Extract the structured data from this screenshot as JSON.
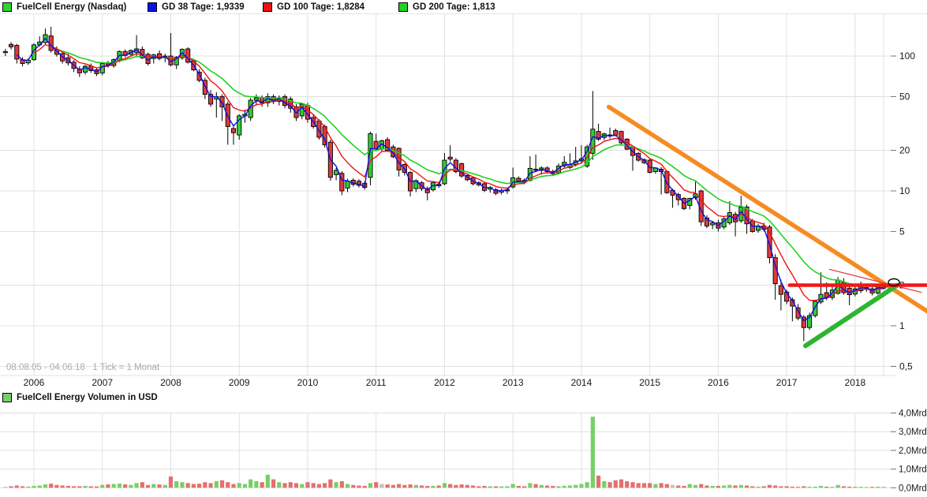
{
  "legend": {
    "price_series": "FuelCell Energy (Nasdaq)",
    "gd38": "GD 38 Tage: 1,9339",
    "gd100": "GD 100 Tage: 1,8284",
    "gd200": "GD 200 Tage: 1,813",
    "volume_series": "FuelCell Energy Volumen in USD"
  },
  "footer_note": "08.08.05 - 04.06.18   1 Tick = 1 Monat",
  "colors": {
    "candle_up": "#33cc33",
    "candle_down": "#e03a3a",
    "candle_border": "#000000",
    "ma38": "#0f0fe8",
    "ma100": "#ef1212",
    "ma200": "#22d122",
    "vol_up": "#77d066",
    "vol_down": "#e37070",
    "vol_neutral": "#c2c2c2",
    "trend_orange": "#f68b22",
    "trend_green": "#2eb530",
    "resistance_red": "#f21616",
    "minor_red": "#e03030",
    "grid": "#e0e0e0",
    "axis_text": "#1a1a1a",
    "muted_text": "#ababab",
    "legend_price_swatch": "#2ed42e",
    "legend_vol_swatch": "#77d066"
  },
  "chart_data": [
    {
      "type": "candlestick",
      "title": "FuelCell Energy (Nasdaq)",
      "period_start": "08.08.05",
      "period_end": "04.06.18",
      "tick_unit": "1 Tick = 1 Monat",
      "scale": "log",
      "start_month": "2005-08",
      "end_month": "2018-06",
      "y_ticks": [
        100,
        50,
        20,
        10,
        5,
        2,
        1,
        0.5
      ],
      "y_tick_labels": [
        "100",
        "50",
        "20",
        "10",
        "5",
        "2",
        "1",
        "0,5"
      ],
      "x_axis_years": [
        {
          "label": "2006",
          "month_index": 5
        },
        {
          "label": "2007",
          "month_index": 17
        },
        {
          "label": "2008",
          "month_index": 29
        },
        {
          "label": "2009",
          "month_index": 41
        },
        {
          "label": "2010",
          "month_index": 53
        },
        {
          "label": "2011",
          "month_index": 65
        },
        {
          "label": "2012",
          "month_index": 77
        },
        {
          "label": "2013",
          "month_index": 89
        },
        {
          "label": "2014",
          "month_index": 101
        },
        {
          "label": "2015",
          "month_index": 113
        },
        {
          "label": "2016",
          "month_index": 125
        },
        {
          "label": "2017",
          "month_index": 137
        },
        {
          "label": "2018",
          "month_index": 149
        }
      ],
      "moving_averages": [
        {
          "name": "GD 38 Tage",
          "value": 1.9339,
          "color": "#0f0fe8"
        },
        {
          "name": "GD 100 Tage",
          "value": 1.8284,
          "color": "#ef1212"
        },
        {
          "name": "GD 200 Tage",
          "value": 1.813,
          "color": "#22d122"
        }
      ],
      "candles_format": [
        "open",
        "high",
        "low",
        "close"
      ],
      "candles": [
        [
          106,
          113,
          100,
          108
        ],
        [
          122,
          127,
          112,
          117
        ],
        [
          120,
          123,
          88,
          95
        ],
        [
          94,
          98,
          84,
          88
        ],
        [
          89,
          96,
          86,
          93
        ],
        [
          94,
          124,
          92,
          121
        ],
        [
          121,
          140,
          118,
          127
        ],
        [
          126,
          160,
          122,
          144
        ],
        [
          141,
          165,
          106,
          110
        ],
        [
          112,
          118,
          99,
          103
        ],
        [
          104,
          108,
          88,
          92
        ],
        [
          97,
          104,
          85,
          89
        ],
        [
          90,
          93,
          76,
          81
        ],
        [
          80,
          84,
          70,
          75
        ],
        [
          76,
          86,
          73,
          84
        ],
        [
          84,
          88,
          75,
          78
        ],
        [
          79,
          82,
          71,
          74
        ],
        [
          75,
          90,
          72,
          88
        ],
        [
          88,
          92,
          82,
          86
        ],
        [
          85,
          96,
          82,
          94
        ],
        [
          92,
          110,
          90,
          108
        ],
        [
          108,
          112,
          98,
          101
        ],
        [
          103,
          112,
          99,
          110
        ],
        [
          106,
          143,
          100,
          113
        ],
        [
          112,
          118,
          95,
          97
        ],
        [
          103,
          106,
          85,
          88
        ],
        [
          96,
          104,
          88,
          102
        ],
        [
          104,
          110,
          93,
          96
        ],
        [
          97,
          104,
          90,
          100
        ],
        [
          100,
          148,
          84,
          86
        ],
        [
          86,
          100,
          80,
          98
        ],
        [
          97,
          114,
          94,
          112
        ],
        [
          113,
          116,
          88,
          90
        ],
        [
          92,
          95,
          77,
          79
        ],
        [
          76,
          80,
          64,
          66
        ],
        [
          66,
          69,
          48,
          52
        ],
        [
          52,
          56,
          42,
          44
        ],
        [
          48,
          54,
          35,
          50
        ],
        [
          50,
          52,
          33,
          42
        ],
        [
          44,
          46,
          22,
          30
        ],
        [
          29,
          31,
          22,
          27
        ],
        [
          26,
          37,
          24,
          36
        ],
        [
          36,
          40,
          32,
          37
        ],
        [
          35,
          49,
          33,
          47
        ],
        [
          47,
          52,
          43,
          49
        ],
        [
          49,
          51,
          42,
          45
        ],
        [
          45,
          53,
          42,
          50
        ],
        [
          50,
          52,
          44,
          46
        ],
        [
          46,
          51,
          43,
          49
        ],
        [
          50,
          52,
          41,
          43
        ],
        [
          48,
          50,
          38,
          41
        ],
        [
          42,
          44,
          33,
          35
        ],
        [
          36,
          45,
          34,
          44
        ],
        [
          43,
          45,
          32,
          34
        ],
        [
          35,
          37,
          29,
          30
        ],
        [
          33,
          34,
          24,
          25
        ],
        [
          30,
          31,
          21,
          22
        ],
        [
          23,
          24,
          11.9,
          12.6
        ],
        [
          13.2,
          14.8,
          12,
          14.2
        ],
        [
          13.5,
          14,
          9.3,
          10
        ],
        [
          10.5,
          12.3,
          9.8,
          11.8
        ],
        [
          12,
          12.4,
          10.8,
          11.2
        ],
        [
          11.8,
          12.2,
          10.6,
          11
        ],
        [
          11.4,
          11.8,
          10.2,
          10.6
        ],
        [
          12.6,
          27.5,
          11,
          26.6
        ],
        [
          23.3,
          26.6,
          19.8,
          20.4
        ],
        [
          20.5,
          24,
          19.5,
          23.5
        ],
        [
          24,
          25,
          19.5,
          20
        ],
        [
          21.2,
          22,
          17.5,
          17.9
        ],
        [
          20.7,
          21,
          12.8,
          14.3
        ],
        [
          15.7,
          16,
          13,
          13.7
        ],
        [
          13.7,
          14,
          9.1,
          10
        ],
        [
          10.4,
          12.2,
          9.8,
          11.9
        ],
        [
          11.5,
          11.8,
          10,
          10.4
        ],
        [
          10.4,
          10.8,
          8.5,
          9.7
        ],
        [
          10.2,
          11.6,
          9.9,
          11.5
        ],
        [
          11.2,
          11.6,
          10.5,
          10.9
        ],
        [
          11.3,
          19.1,
          11,
          16.9
        ],
        [
          17.8,
          21.8,
          16.5,
          17.2
        ],
        [
          16.9,
          17.5,
          13.5,
          13.9
        ],
        [
          15.9,
          16.2,
          12.5,
          12.9
        ],
        [
          13,
          13.4,
          11.8,
          12.1
        ],
        [
          12.5,
          12.8,
          11,
          11.3
        ],
        [
          11.5,
          11.8,
          10.8,
          11.1
        ],
        [
          11.3,
          11.6,
          9.8,
          10.1
        ],
        [
          10.3,
          10.9,
          9.7,
          10.6
        ],
        [
          10.2,
          10.5,
          9.3,
          9.6
        ],
        [
          9.8,
          10.4,
          9.4,
          10.1
        ],
        [
          10,
          10.6,
          9.5,
          10.2
        ],
        [
          10.7,
          14.9,
          10.4,
          12.5
        ],
        [
          12.4,
          12.8,
          11.5,
          11.8
        ],
        [
          12,
          12.4,
          11.2,
          11.6
        ],
        [
          12,
          18.1,
          11.7,
          14.7
        ],
        [
          14.5,
          18.6,
          13.8,
          14.2
        ],
        [
          14.2,
          15.2,
          13.2,
          14.8
        ],
        [
          14.8,
          15.2,
          13.5,
          13.9
        ],
        [
          13.9,
          14.4,
          12.9,
          13.4
        ],
        [
          13.6,
          16,
          13.2,
          15.3
        ],
        [
          15.3,
          18.1,
          14.8,
          16.3
        ],
        [
          14.9,
          19,
          14.5,
          15.7
        ],
        [
          15.7,
          21.2,
          15.2,
          16.7
        ],
        [
          16.7,
          21.8,
          16,
          17.3
        ],
        [
          15.3,
          22,
          14.8,
          21.2
        ],
        [
          19,
          55,
          17,
          28.7
        ],
        [
          27.6,
          31.5,
          23.5,
          24.2
        ],
        [
          24.9,
          27,
          23.8,
          26.5
        ],
        [
          26,
          29.5,
          24.5,
          25.5
        ],
        [
          28,
          29,
          25.5,
          25.9
        ],
        [
          27.6,
          28,
          22,
          22.7
        ],
        [
          24.2,
          24.6,
          20,
          20.4
        ],
        [
          21.2,
          21.6,
          14.1,
          18.3
        ],
        [
          19,
          19.4,
          16.5,
          16.9
        ],
        [
          17,
          17.4,
          15.8,
          16.2
        ],
        [
          16.9,
          17.2,
          13.5,
          13.7
        ],
        [
          13.9,
          15,
          13.4,
          14.8
        ],
        [
          14.5,
          15,
          9.4,
          13.9
        ],
        [
          13.9,
          14.2,
          9.5,
          9.7
        ],
        [
          10.1,
          10.4,
          7.5,
          9.3
        ],
        [
          9.4,
          9.7,
          7.8,
          8.6
        ],
        [
          8.8,
          9,
          7.2,
          7.4
        ],
        [
          7.8,
          8.9,
          7.3,
          8.8
        ],
        [
          8.9,
          11.7,
          8.6,
          9.5
        ],
        [
          10,
          10.2,
          5.5,
          5.9
        ],
        [
          6.3,
          6.6,
          5.3,
          5.5
        ],
        [
          5.6,
          6,
          5.2,
          5.8
        ],
        [
          5.8,
          6.1,
          5,
          5.3
        ],
        [
          5.4,
          6.4,
          5.2,
          6.2
        ],
        [
          5.8,
          8.4,
          5.6,
          6.9
        ],
        [
          6.7,
          7,
          4.6,
          5.9
        ],
        [
          6,
          9.2,
          5.8,
          7.6
        ],
        [
          7.6,
          7.9,
          4.8,
          5.7
        ],
        [
          6,
          6.2,
          4.9,
          5
        ],
        [
          5.1,
          5.7,
          4.9,
          5.5
        ],
        [
          5.5,
          5.8,
          5,
          5.2
        ],
        [
          5.4,
          5.6,
          2.9,
          3.2
        ],
        [
          3.2,
          3.4,
          1.56,
          2.05
        ],
        [
          1.98,
          2.2,
          1.3,
          1.71
        ],
        [
          1.78,
          1.85,
          1.45,
          1.52
        ],
        [
          1.56,
          1.62,
          1.08,
          1.4
        ],
        [
          1.36,
          1.45,
          1.1,
          1.14
        ],
        [
          1.16,
          1.2,
          0.77,
          0.97
        ],
        [
          0.97,
          1.25,
          0.93,
          1.19
        ],
        [
          1.19,
          1.56,
          1.15,
          1.52
        ],
        [
          1.5,
          2.49,
          1.45,
          1.71
        ],
        [
          1.76,
          2.1,
          1.55,
          1.62
        ],
        [
          1.62,
          1.95,
          1.55,
          1.84
        ],
        [
          1.74,
          2.3,
          1.7,
          2.18
        ],
        [
          2.1,
          2.25,
          1.7,
          1.76
        ],
        [
          1.9,
          2,
          1.42,
          1.7
        ],
        [
          1.72,
          1.95,
          1.65,
          1.88
        ],
        [
          1.82,
          2.13,
          1.75,
          1.95
        ],
        [
          1.9,
          2.02,
          1.78,
          1.92
        ],
        [
          1.88,
          1.95,
          1.68,
          1.75
        ],
        [
          1.75,
          2.05,
          1.7,
          1.98
        ],
        [
          1.95,
          2,
          1.85,
          1.9
        ]
      ],
      "trendlines": [
        {
          "name": "orange-downtrend",
          "color": "#f68b22",
          "width": 5.5,
          "from": {
            "i": 105.8,
            "v": 42
          },
          "to": {
            "i": 161.8,
            "v": 1.27
          }
        },
        {
          "name": "green-support",
          "color": "#2eb530",
          "width": 6,
          "from": {
            "i": 140.3,
            "v": 0.71
          },
          "to": {
            "i": 156.3,
            "v": 1.99
          }
        },
        {
          "name": "red-horizontal",
          "color": "#f21616",
          "width": 4.5,
          "from": {
            "i": 137.5,
            "v": 2.0
          },
          "to": {
            "i": 161.8,
            "v": 2.0
          }
        },
        {
          "name": "minor-red",
          "color": "#e03030",
          "width": 1.2,
          "from": {
            "i": 144.5,
            "v": 2.62
          },
          "to": {
            "i": 160.6,
            "v": 1.77
          }
        }
      ],
      "apex_marker": {
        "i": 155.8,
        "v": 2.1,
        "rx": 7,
        "ry": 4.5,
        "color": "#000000"
      }
    },
    {
      "type": "bar",
      "title": "FuelCell Energy Volumen in USD",
      "unit": "Mrd USD",
      "y_ticks": [
        4,
        3,
        2,
        1,
        0
      ],
      "y_tick_labels": [
        "4,0Mrd",
        "3,0Mrd",
        "2,0Mrd",
        "1,0Mrd",
        "0,0Mrd"
      ],
      "values": [
        0.05,
        0.08,
        0.12,
        0.08,
        0.06,
        0.1,
        0.12,
        0.18,
        0.22,
        0.15,
        0.12,
        0.1,
        0.08,
        0.08,
        0.1,
        0.08,
        0.07,
        0.15,
        0.18,
        0.2,
        0.22,
        0.18,
        0.15,
        0.25,
        0.3,
        0.15,
        0.2,
        0.18,
        0.15,
        0.6,
        0.35,
        0.3,
        0.25,
        0.2,
        0.22,
        0.3,
        0.25,
        0.35,
        0.4,
        0.3,
        0.2,
        0.25,
        0.2,
        0.45,
        0.35,
        0.3,
        0.7,
        0.45,
        0.3,
        0.25,
        0.3,
        0.25,
        0.2,
        0.3,
        0.25,
        0.2,
        0.25,
        0.45,
        0.3,
        0.35,
        0.2,
        0.15,
        0.12,
        0.1,
        0.25,
        0.3,
        0.2,
        0.18,
        0.15,
        0.2,
        0.15,
        0.18,
        0.15,
        0.12,
        0.1,
        0.1,
        0.12,
        0.25,
        0.2,
        0.15,
        0.18,
        0.15,
        0.12,
        0.08,
        0.1,
        0.08,
        0.08,
        0.07,
        0.08,
        0.2,
        0.1,
        0.08,
        0.25,
        0.2,
        0.15,
        0.12,
        0.1,
        0.08,
        0.1,
        0.12,
        0.15,
        0.2,
        0.3,
        3.8,
        0.65,
        0.35,
        0.3,
        0.4,
        0.45,
        0.35,
        0.3,
        0.25,
        0.25,
        0.25,
        0.2,
        0.25,
        0.2,
        0.15,
        0.12,
        0.1,
        0.2,
        0.15,
        0.2,
        0.12,
        0.1,
        0.1,
        0.12,
        0.15,
        0.12,
        0.15,
        0.12,
        0.08,
        0.06,
        0.08,
        0.15,
        0.12,
        0.08,
        0.08,
        0.06,
        0.05,
        0.08,
        0.06,
        0.06,
        0.1,
        0.06,
        0.05,
        0.15,
        0.08,
        0.06,
        0.06,
        0.05,
        0.04,
        0.05,
        0.06,
        0.04
      ],
      "neutral_indices": [
        0,
        66,
        117
      ]
    }
  ]
}
